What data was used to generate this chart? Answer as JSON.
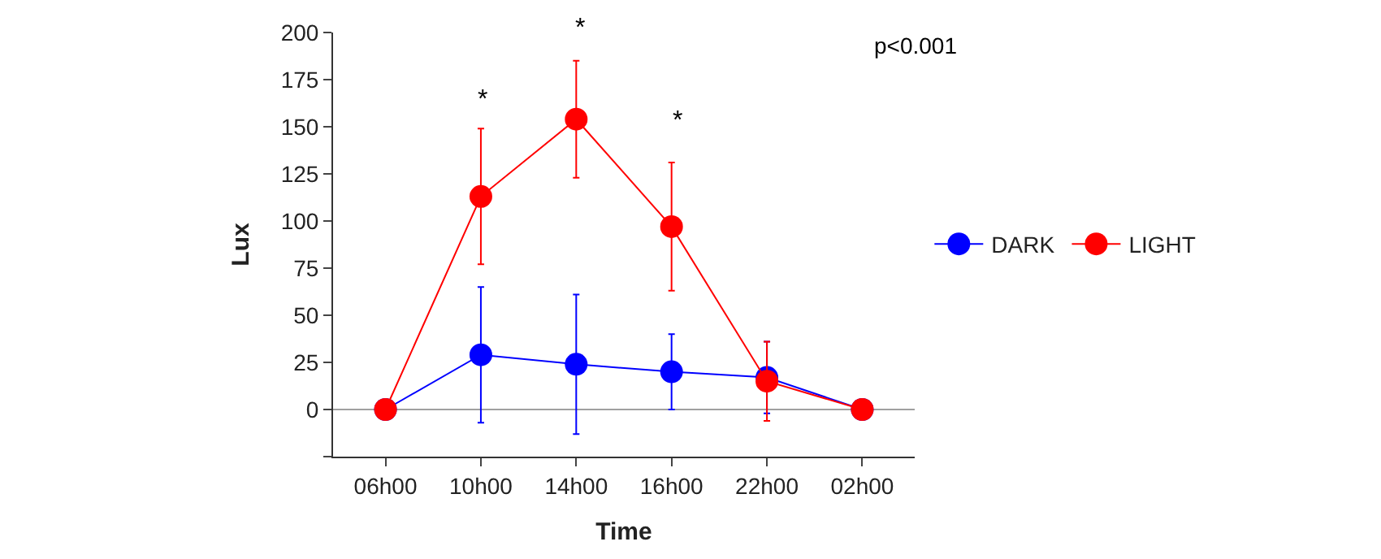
{
  "chart_data": {
    "type": "line",
    "xlabel": "Time",
    "ylabel": "Lux",
    "categories": [
      "06h00",
      "10h00",
      "14h00",
      "16h00",
      "22h00",
      "02h00"
    ],
    "series": [
      {
        "name": "DARK",
        "color": "#0000ff",
        "values": [
          0,
          29,
          24,
          20,
          17,
          0
        ],
        "errors": [
          null,
          36,
          37,
          20,
          19,
          null
        ]
      },
      {
        "name": "LIGHT",
        "color": "#ff0000",
        "values": [
          0,
          113,
          154,
          97,
          15,
          0
        ],
        "errors": [
          null,
          36,
          31,
          34,
          21,
          null
        ]
      }
    ],
    "ylim": [
      -25,
      200
    ],
    "yticks": [
      {
        "value": -25,
        "label": null
      },
      0,
      25,
      50,
      75,
      100,
      125,
      150,
      175,
      200
    ],
    "ref_lines": [
      {
        "axis": "y",
        "value": 0,
        "color": "#a0a0a0"
      }
    ],
    "annotations": [
      "*",
      "*",
      "*",
      "p<0.001"
    ],
    "marker": "circle",
    "line_style": "solid",
    "grid": false,
    "legend": "right"
  }
}
